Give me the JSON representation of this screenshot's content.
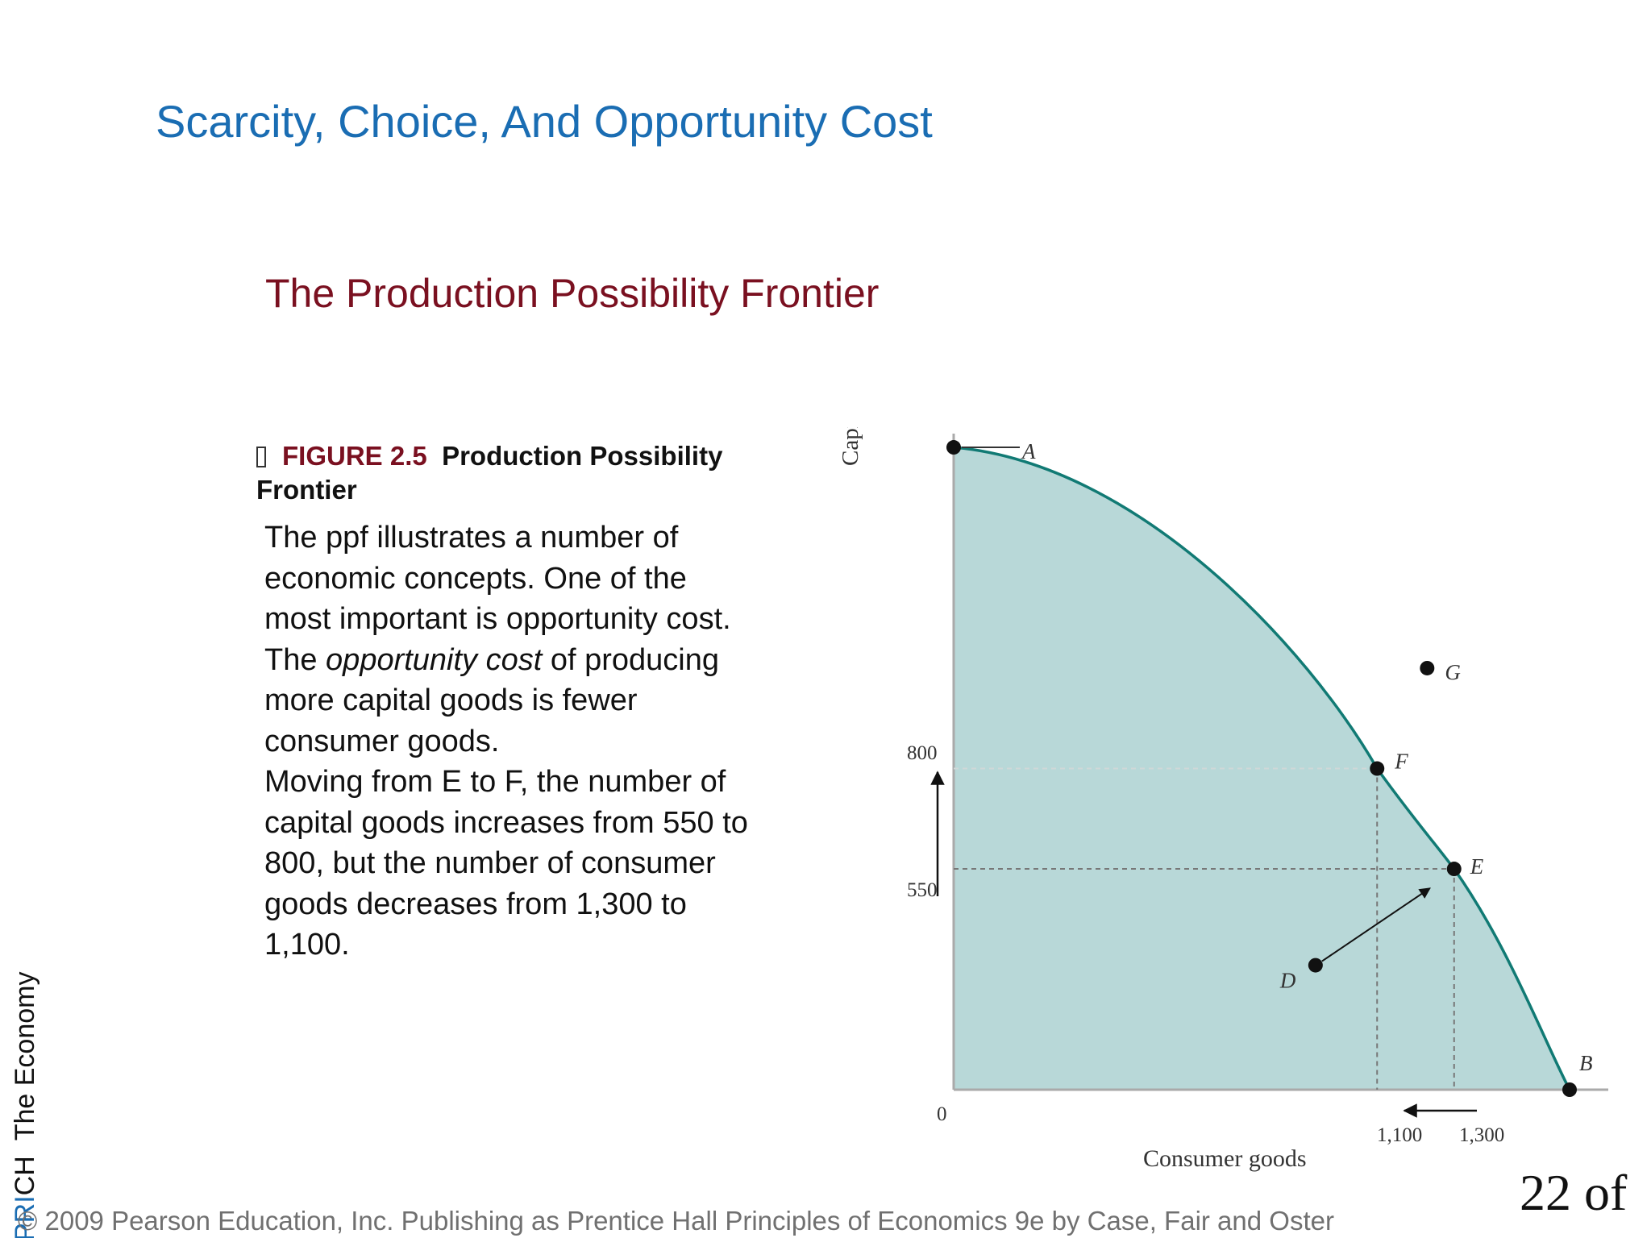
{
  "slide": {
    "title": "Scarcity, Choice, And Opportunity Cost",
    "subtitle": "The Production Possibility Frontier",
    "figure": {
      "number": "FIGURE 2.5",
      "caption": "Production Possibility Frontier"
    },
    "body": {
      "line1": "The ppf illustrates a number of economic concepts. One of the most important is opportunity cost. The ",
      "emphasis": "opportunity cost",
      "line2": " of producing more capital goods is fewer consumer goods.",
      "line3": "Moving from E to F, the number of capital goods increases from 550 to 800, but the number of consumer goods decreases from 1,300 to 1,100."
    },
    "side_label_a": "The Economy",
    "side_label_b": "PRI",
    "side_label_c": "CH",
    "footer": "© 2009 Pearson Education, Inc. Publishing as Prentice Hall   Principles of Economics 9e by Case, Fair and Oster",
    "page_number": "22 of"
  },
  "chart_data": {
    "type": "line",
    "ylabel": "Capital goods",
    "xlabel": "Consumer goods",
    "origin_label": "0",
    "y_ticks": [
      "800",
      "550"
    ],
    "x_ticks": [
      "1,100",
      "1,300"
    ],
    "points": [
      {
        "label": "A",
        "x": 0,
        "y": 1600
      },
      {
        "label": "F",
        "x": 1100,
        "y": 800
      },
      {
        "label": "E",
        "x": 1300,
        "y": 550
      },
      {
        "label": "B",
        "x": 1600,
        "y": 0
      },
      {
        "label": "G",
        "x": 1230,
        "y": 1050
      },
      {
        "label": "D",
        "x": 940,
        "y": 310
      }
    ],
    "fill_color": "#b8d8d8",
    "curve_color": "#117a74"
  }
}
